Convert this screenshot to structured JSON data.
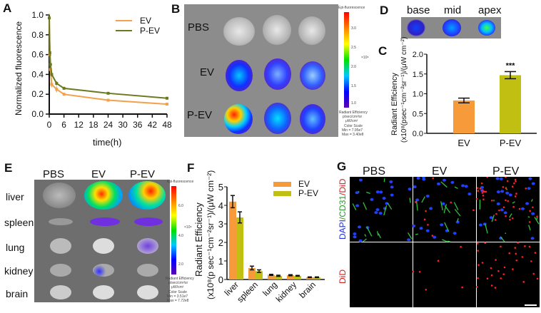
{
  "panel_labels": {
    "A": "A",
    "B": "B",
    "C": "C",
    "D": "D",
    "E": "E",
    "F": "F",
    "G": "G"
  },
  "chart_data": [
    {
      "panel": "A",
      "type": "line",
      "xlabel": "time(h)",
      "ylabel": "Normalized fluorescence",
      "xlim": [
        0,
        48
      ],
      "ylim": [
        0,
        1.0
      ],
      "xticks": [
        "0",
        "6",
        "12",
        "18",
        "24",
        "30",
        "36",
        "42",
        "48"
      ],
      "yticks": [
        "0.0",
        "0.2",
        "0.4",
        "0.6",
        "0.8",
        "1.0"
      ],
      "legend": "top-right",
      "x": [
        0,
        0.25,
        0.5,
        1,
        3,
        6,
        24,
        48
      ],
      "series": [
        {
          "name": "EV",
          "color": "#f5a04a",
          "values": [
            0.97,
            0.6,
            0.45,
            0.3,
            0.25,
            0.2,
            0.14,
            0.1
          ],
          "errors": [
            0.04,
            0.04,
            0.03,
            0.03,
            0.03,
            0.015,
            0.01,
            0.01
          ]
        },
        {
          "name": "P-EV",
          "color": "#6b7a1e",
          "values": [
            0.97,
            0.62,
            0.5,
            0.4,
            0.31,
            0.26,
            0.21,
            0.16
          ],
          "errors": [
            0.04,
            0.04,
            0.03,
            0.02,
            0.02,
            0.015,
            0.01,
            0.01
          ]
        }
      ]
    },
    {
      "panel": "C",
      "type": "bar",
      "ylabel_line1": "Radiant  Efficiency",
      "ylabel_line2": "(x10⁸(psec⁻¹cm⁻²sr⁻¹)/(μW cm⁻²)",
      "ylim": [
        0,
        2.0
      ],
      "yticks": [
        "0.0",
        "0.5",
        "1.0",
        "1.5",
        "2.0"
      ],
      "categories": [
        "EV",
        "P-EV"
      ],
      "values": [
        0.83,
        1.47
      ],
      "errors": [
        0.06,
        0.09
      ],
      "colors": [
        "#f79a3a",
        "#c2bf13"
      ],
      "annotations": [
        "",
        "***"
      ]
    },
    {
      "panel": "F",
      "type": "bar",
      "ylabel_line1": "Radiant Efficiency",
      "ylabel_line2": "(x10⁸(p sec⁻¹cm⁻²sr⁻¹)/(μW cm⁻²)",
      "ylim": [
        0,
        5
      ],
      "yticks": [
        "0",
        "1",
        "2",
        "3",
        "4",
        "5"
      ],
      "legend": "top-right",
      "categories": [
        "liver",
        "spleen",
        "lung",
        "kidney",
        "brain"
      ],
      "series": [
        {
          "name": "EV",
          "color": "#f79a3a",
          "values": [
            4.2,
            0.62,
            0.25,
            0.23,
            0.12
          ],
          "errors": [
            0.33,
            0.1,
            0.03,
            0.03,
            0.02
          ]
        },
        {
          "name": "P-EV",
          "color": "#c2bf13",
          "values": [
            3.35,
            0.45,
            0.2,
            0.2,
            0.12
          ],
          "errors": [
            0.3,
            0.07,
            0.03,
            0.02,
            0.02
          ]
        }
      ]
    }
  ],
  "panel_B": {
    "rows": [
      "PBS",
      "EV",
      "P-EV"
    ],
    "colorbar": {
      "title": "Epi-fluorescence",
      "ticks": [
        "3.0",
        "2.5",
        "2.0",
        "1.5",
        "1.0"
      ],
      "exponent": "×10⁸",
      "unit_lines": [
        "Radiant Efficiency",
        "p/sec/cm²/sr",
        "μW/cm²"
      ],
      "scale_lines": [
        "Color Scale",
        "Min = 7.95e7",
        "Max = 3.40e8"
      ]
    }
  },
  "panel_D": {
    "labels": [
      "base",
      "mid",
      "apex"
    ]
  },
  "panel_E": {
    "columns": [
      "PBS",
      "EV",
      "P-EV"
    ],
    "rows": [
      "liver",
      "spleen",
      "lung",
      "kidney",
      "brain"
    ],
    "colorbar": {
      "title": "Epi-fluorescence",
      "ticks": [
        "6.0",
        "4.0",
        "2.0"
      ],
      "exponent": "×10⁸",
      "unit_lines": [
        "Radiant Efficiency",
        "p/sec/cm²/sr",
        "μW/cm²"
      ],
      "scale_lines": [
        "Color Scale",
        "Min = 3.51e7",
        "Max = 7.72e8"
      ]
    }
  },
  "panel_G": {
    "columns": [
      "PBS",
      "EV",
      "P-EV"
    ],
    "row1_label": {
      "dapi": "DAPI",
      "sep1": "/",
      "cd31": "CD31",
      "sep2": "/",
      "did": "DiD"
    },
    "row2_label": "DiD"
  }
}
